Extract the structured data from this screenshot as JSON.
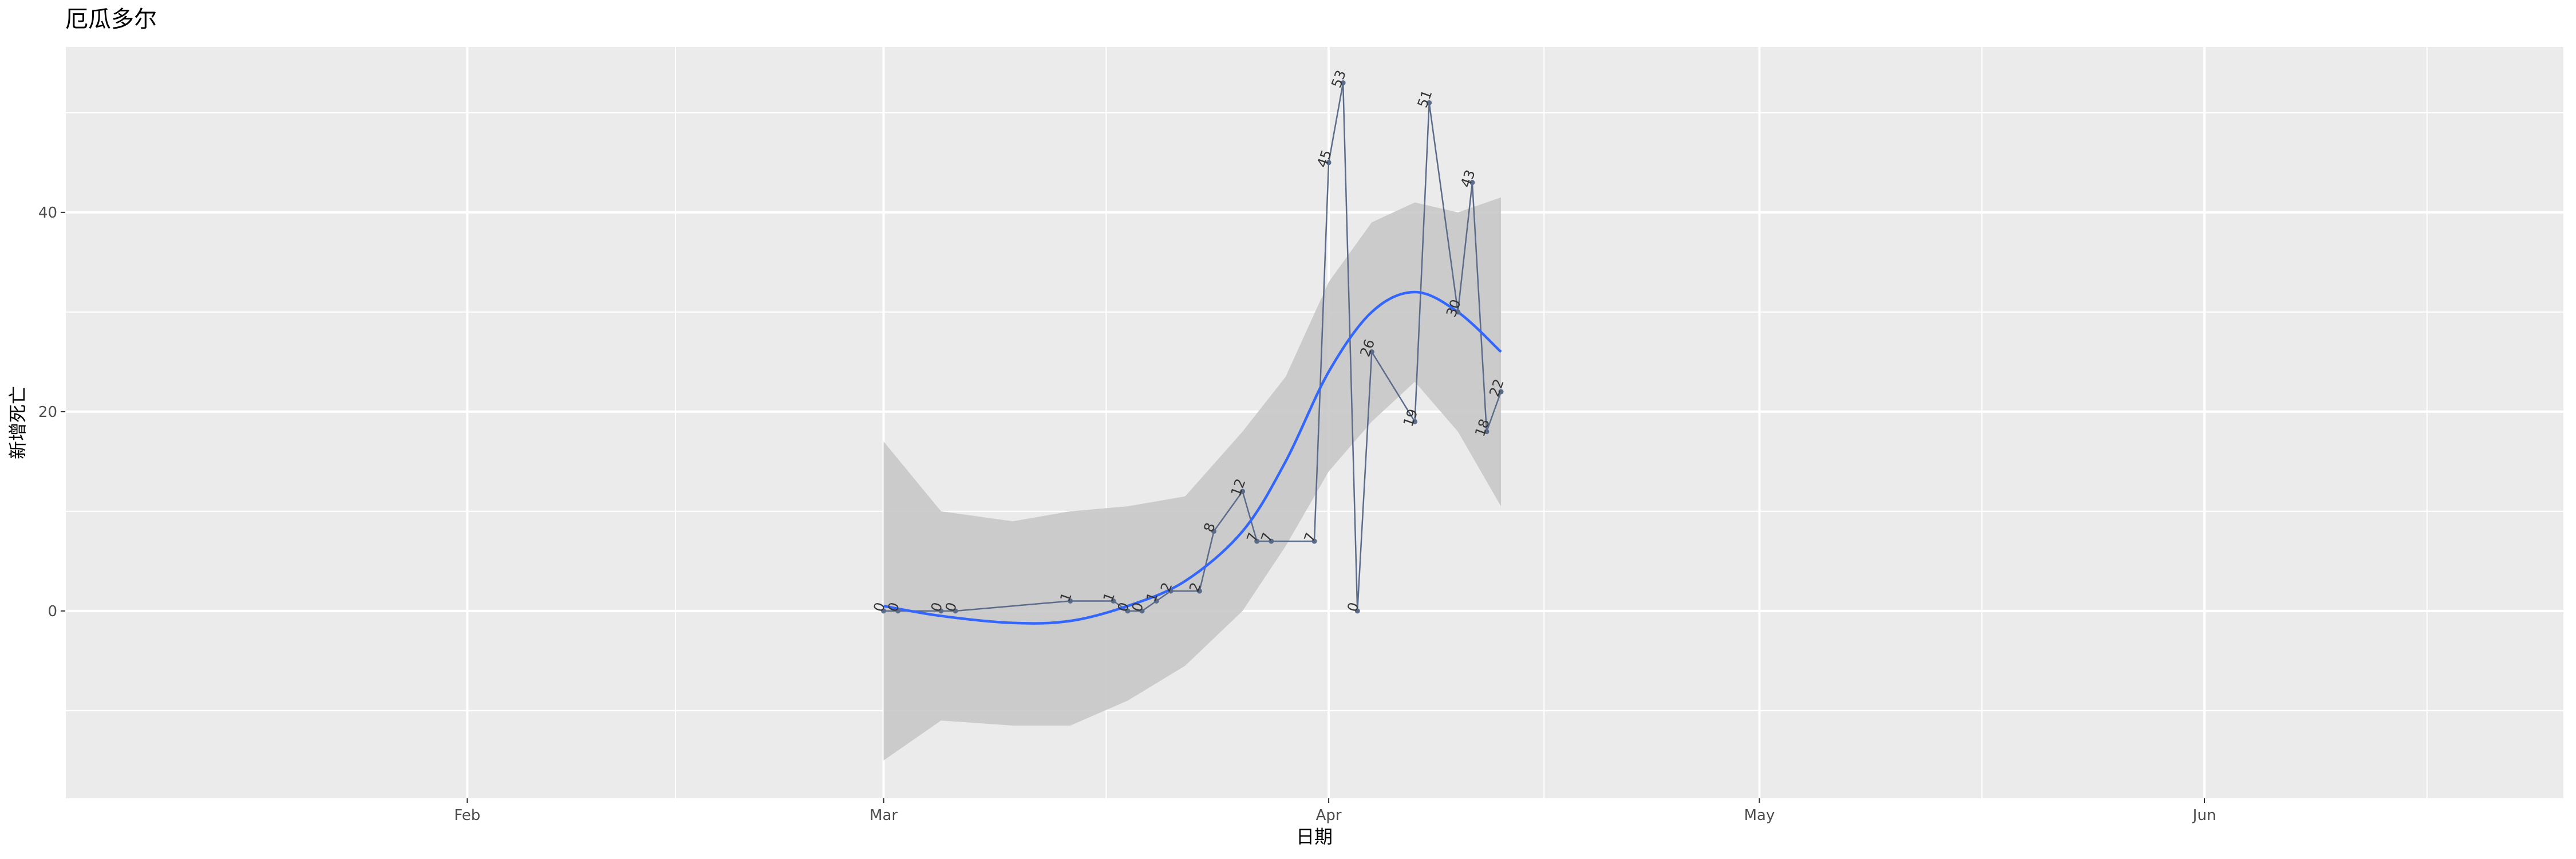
{
  "chart_data": {
    "type": "line",
    "title": "厄瓜多尔",
    "xlabel": "日期",
    "ylabel": "新增死亡",
    "x_tick_labels": [
      "Feb",
      "Mar",
      "Apr",
      "May",
      "Jun"
    ],
    "y_tick_labels": [
      "0",
      "20",
      "40"
    ],
    "x_ticks": [
      "2020-02-01",
      "2020-03-01",
      "2020-04-01",
      "2020-05-01",
      "2020-06-01"
    ],
    "y_ticks": [
      0,
      20,
      40
    ],
    "xlim": [
      "2020-01-04",
      "2020-06-26"
    ],
    "ylim": [
      -18.8,
      56.6
    ],
    "grid": true,
    "series": [
      {
        "points": [
          {
            "date": "2020-03-01",
            "value": 0
          },
          {
            "date": "2020-03-02",
            "value": 0
          },
          {
            "date": "2020-03-05",
            "value": 0
          },
          {
            "date": "2020-03-06",
            "value": 0
          },
          {
            "date": "2020-03-14",
            "value": 1
          },
          {
            "date": "2020-03-17",
            "value": 1
          },
          {
            "date": "2020-03-18",
            "value": 0
          },
          {
            "date": "2020-03-19",
            "value": 0
          },
          {
            "date": "2020-03-20",
            "value": 1
          },
          {
            "date": "2020-03-21",
            "value": 2
          },
          {
            "date": "2020-03-23",
            "value": 2
          },
          {
            "date": "2020-03-24",
            "value": 8
          },
          {
            "date": "2020-03-26",
            "value": 12
          },
          {
            "date": "2020-03-27",
            "value": 7
          },
          {
            "date": "2020-03-28",
            "value": 7
          },
          {
            "date": "2020-03-31",
            "value": 7
          },
          {
            "date": "2020-04-01",
            "value": 45
          },
          {
            "date": "2020-04-02",
            "value": 53
          },
          {
            "date": "2020-04-03",
            "value": 0
          },
          {
            "date": "2020-04-04",
            "value": 26
          },
          {
            "date": "2020-04-07",
            "value": 19
          },
          {
            "date": "2020-04-08",
            "value": 51
          },
          {
            "date": "2020-04-10",
            "value": 30
          },
          {
            "date": "2020-04-11",
            "value": 43
          },
          {
            "date": "2020-04-12",
            "value": 18
          },
          {
            "date": "2020-04-13",
            "value": 22
          }
        ]
      }
    ],
    "smooth": {
      "points": [
        {
          "date": "2020-03-01",
          "fit": 0.5,
          "lower": -15.0,
          "upper": 17.0
        },
        {
          "date": "2020-03-05",
          "fit": -0.5,
          "lower": -11.0,
          "upper": 10.0
        },
        {
          "date": "2020-03-10",
          "fit": -1.2,
          "lower": -11.5,
          "upper": 9.0
        },
        {
          "date": "2020-03-14",
          "fit": -1.0,
          "lower": -11.5,
          "upper": 10.0
        },
        {
          "date": "2020-03-18",
          "fit": 0.5,
          "lower": -9.0,
          "upper": 10.5
        },
        {
          "date": "2020-03-22",
          "fit": 3.0,
          "lower": -5.5,
          "upper": 11.5
        },
        {
          "date": "2020-03-26",
          "fit": 8.0,
          "lower": 0.0,
          "upper": 18.0
        },
        {
          "date": "2020-03-29",
          "fit": 15.0,
          "lower": 6.5,
          "upper": 23.5
        },
        {
          "date": "2020-04-01",
          "fit": 24.0,
          "lower": 14.0,
          "upper": 33.0
        },
        {
          "date": "2020-04-04",
          "fit": 30.0,
          "lower": 19.0,
          "upper": 39.0
        },
        {
          "date": "2020-04-07",
          "fit": 32.0,
          "lower": 23.0,
          "upper": 41.0
        },
        {
          "date": "2020-04-10",
          "fit": 30.0,
          "lower": 18.0,
          "upper": 40.0
        },
        {
          "date": "2020-04-13",
          "fit": 26.0,
          "lower": 10.5,
          "upper": 41.5
        }
      ]
    },
    "colors": {
      "panel": "#ebebeb",
      "grid_major": "#ffffff",
      "line": "#5b6b8a",
      "point": "#5b6b8a",
      "smooth_line": "#3366ff",
      "ribbon": "#c8c8c8"
    }
  }
}
